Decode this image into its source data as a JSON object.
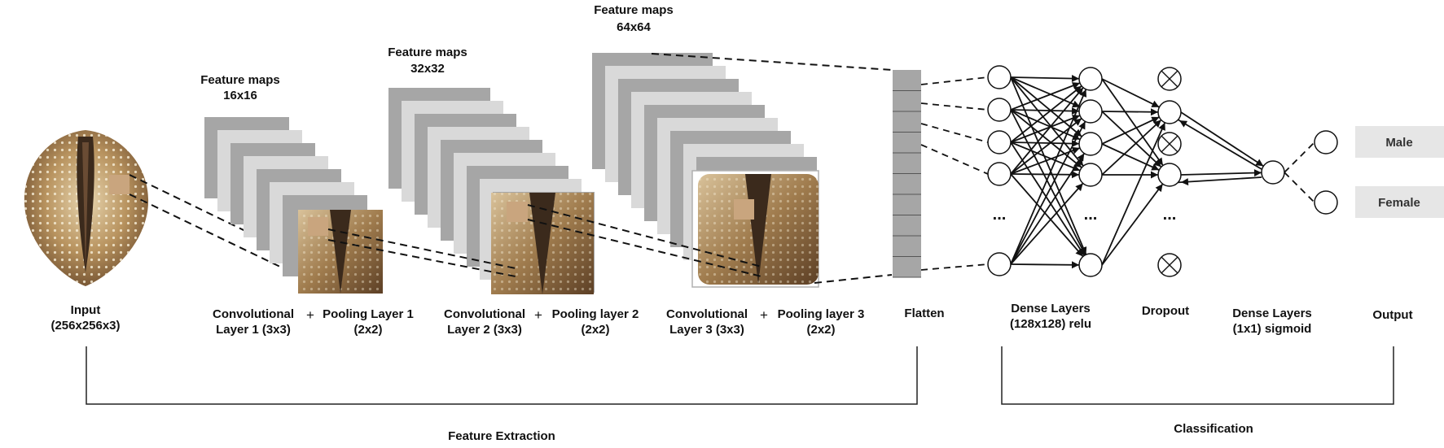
{
  "diagram": {
    "input_label": [
      "Input",
      "(256x256x3)"
    ],
    "feature_maps": [
      {
        "title": "Feature maps",
        "size": "16x16"
      },
      {
        "title": "Feature maps",
        "size": "32x32"
      },
      {
        "title": "Feature maps",
        "size": "64x64"
      }
    ],
    "conv_layers": [
      {
        "conv": [
          "Convolutional",
          "Layer 1 (3x3)"
        ],
        "pool": [
          "Pooling Layer 1",
          "(2x2)"
        ]
      },
      {
        "conv": [
          "Convolutional",
          "Layer 2 (3x3)"
        ],
        "pool": [
          "Pooling layer 2",
          "(2x2)"
        ]
      },
      {
        "conv": [
          "Convolutional",
          "Layer 3 (3x3)"
        ],
        "pool": [
          "Pooling layer 3",
          "(2x2)"
        ]
      }
    ],
    "plus_sign": "+",
    "flatten_label": "Flatten",
    "dense1_label": [
      "Dense Layers",
      "(128x128) relu"
    ],
    "dropout_label": "Dropout",
    "dense2_label": [
      "Dense Layers",
      "(1x1) sigmoid"
    ],
    "output_label": "Output",
    "outputs": [
      "Male",
      "Female"
    ],
    "ellipsis": "...",
    "feature_extraction_label": "Feature Extraction",
    "classification_label": "Classification",
    "colors": {
      "map_dark": "#a6a6a6",
      "map_light": "#d9d9d9",
      "output_box": "#e6e6e6",
      "patch": "#c9a57e",
      "shell_light": "#c4ab7c",
      "shell_dark": "#3b2a1c"
    }
  }
}
